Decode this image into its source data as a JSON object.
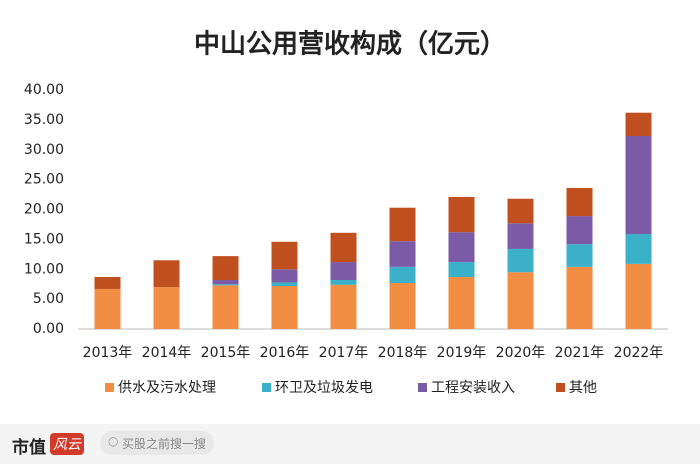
{
  "chart_data": {
    "type": "stacked_bar",
    "title": "中山公用营收构成（亿元）",
    "categories": [
      "2013年",
      "2014年",
      "2015年",
      "2016年",
      "2017年",
      "2018年",
      "2019年",
      "2020年",
      "2021年",
      "2022年"
    ],
    "series": [
      {
        "name": "供水及污水处理",
        "color": "#f28e43",
        "values": [
          6.7,
          7.0,
          7.3,
          7.2,
          7.4,
          7.7,
          8.7,
          9.5,
          10.4,
          10.9
        ]
      },
      {
        "name": "环卫及垃圾发电",
        "color": "#3ab0c9",
        "values": [
          0,
          0,
          0.2,
          0.6,
          0.8,
          2.7,
          2.5,
          3.9,
          3.8,
          5.0
        ]
      },
      {
        "name": "工程安装收入",
        "color": "#7b5aa6",
        "values": [
          0,
          0,
          0.7,
          2.2,
          3.0,
          4.3,
          5.0,
          4.3,
          4.7,
          16.4
        ]
      },
      {
        "name": "其他",
        "color": "#c0501f",
        "values": [
          2.0,
          4.5,
          4.0,
          4.6,
          4.9,
          5.6,
          5.9,
          4.1,
          4.7,
          3.9
        ]
      }
    ],
    "ylim": [
      0,
      40
    ],
    "yticks": [
      {
        "value": 0,
        "label": "0.00"
      },
      {
        "value": 5,
        "label": "5.00"
      },
      {
        "value": 10,
        "label": "10.00"
      },
      {
        "value": 15,
        "label": "15.00"
      },
      {
        "value": 20,
        "label": "20.00"
      },
      {
        "value": 25,
        "label": "25.00"
      },
      {
        "value": 30,
        "label": "30.00"
      },
      {
        "value": 35,
        "label": "35.00"
      },
      {
        "value": 40,
        "label": "40.00"
      }
    ],
    "grid": false,
    "legend": "bottom"
  },
  "footer": {
    "logo": "市值",
    "logo_mark": "风云",
    "search_placeholder": "买股之前搜一搜"
  }
}
